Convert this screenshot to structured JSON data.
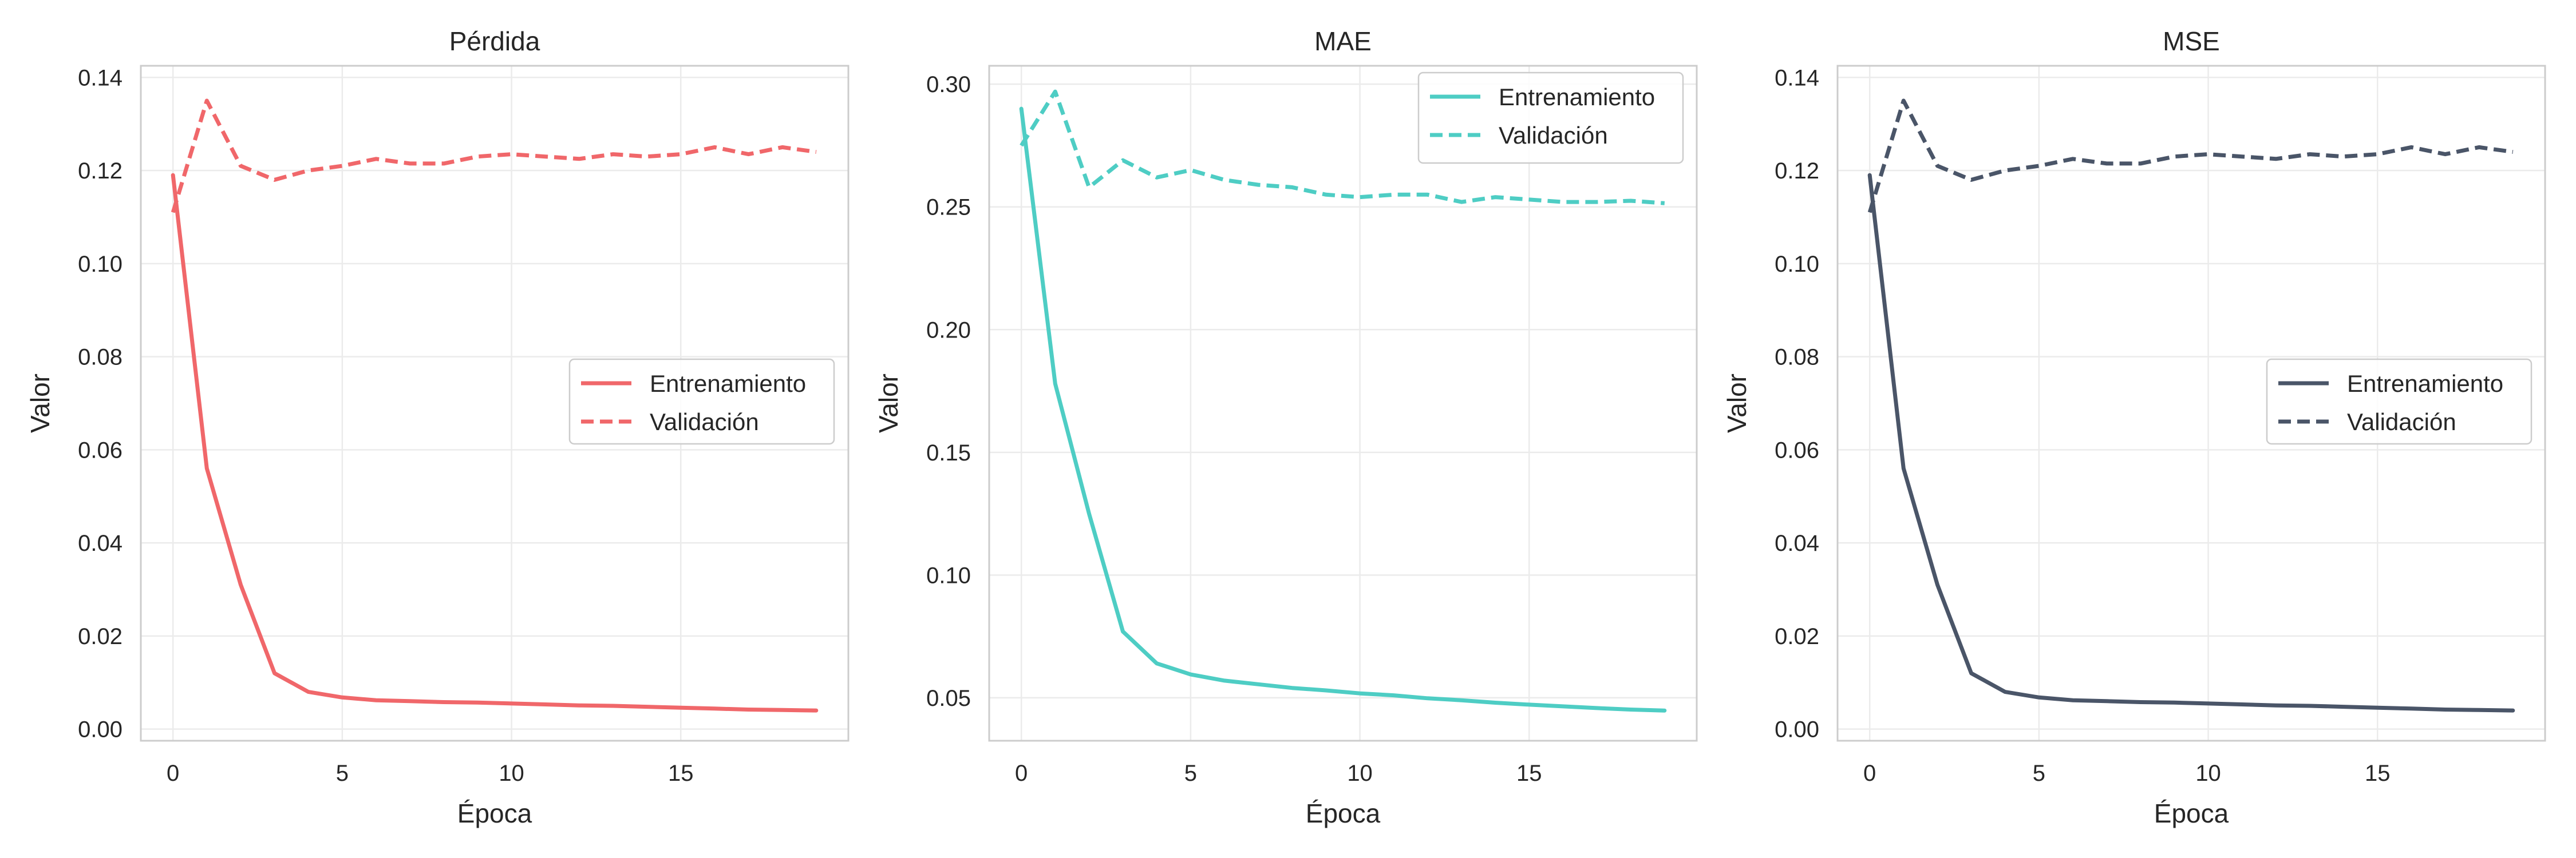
{
  "chart_data": [
    {
      "type": "line",
      "title": "Pérdida",
      "xlabel": "Época",
      "ylabel": "Valor",
      "x": [
        0,
        1,
        2,
        3,
        4,
        5,
        6,
        7,
        8,
        9,
        10,
        11,
        12,
        13,
        14,
        15,
        16,
        17,
        18,
        19
      ],
      "xlim": [
        -0.95,
        19.95
      ],
      "ylim": [
        -0.0025,
        0.1425
      ],
      "xticks": [
        0,
        5,
        10,
        15
      ],
      "xtick_labels": [
        "0",
        "5",
        "10",
        "15"
      ],
      "yticks": [
        0.0,
        0.02,
        0.04,
        0.06,
        0.08,
        0.1,
        0.12,
        0.14
      ],
      "ytick_labels": [
        "0.00",
        "0.02",
        "0.04",
        "0.06",
        "0.08",
        "0.10",
        "0.12",
        "0.14"
      ],
      "grid": true,
      "legend_position": "center-right",
      "series": [
        {
          "name": "Entrenamiento",
          "style": "solid",
          "color": "#f0676a",
          "values": [
            0.119,
            0.056,
            0.031,
            0.012,
            0.008,
            0.0068,
            0.0062,
            0.006,
            0.0058,
            0.0057,
            0.0055,
            0.0053,
            0.0051,
            0.005,
            0.0048,
            0.0046,
            0.0044,
            0.0042,
            0.0041,
            0.004
          ]
        },
        {
          "name": "Validación",
          "style": "dashed",
          "color": "#f0676a",
          "values": [
            0.111,
            0.135,
            0.121,
            0.118,
            0.12,
            0.121,
            0.1225,
            0.1215,
            0.1215,
            0.123,
            0.1235,
            0.123,
            0.1225,
            0.1235,
            0.123,
            0.1235,
            0.125,
            0.1235,
            0.125,
            0.124
          ]
        }
      ]
    },
    {
      "type": "line",
      "title": "MAE",
      "xlabel": "Época",
      "ylabel": "Valor",
      "x": [
        0,
        1,
        2,
        3,
        4,
        5,
        6,
        7,
        8,
        9,
        10,
        11,
        12,
        13,
        14,
        15,
        16,
        17,
        18,
        19
      ],
      "xlim": [
        -0.95,
        19.95
      ],
      "ylim": [
        0.0325,
        0.3075
      ],
      "xticks": [
        0,
        5,
        10,
        15
      ],
      "xtick_labels": [
        "0",
        "5",
        "10",
        "15"
      ],
      "yticks": [
        0.05,
        0.1,
        0.15,
        0.2,
        0.25,
        0.3
      ],
      "ytick_labels": [
        "0.05",
        "0.10",
        "0.15",
        "0.20",
        "0.25",
        "0.30"
      ],
      "grid": true,
      "legend_position": "top-right",
      "series": [
        {
          "name": "Entrenamiento",
          "style": "solid",
          "color": "#4ecdc4",
          "values": [
            0.29,
            0.178,
            0.125,
            0.077,
            0.064,
            0.0595,
            0.057,
            0.0555,
            0.054,
            0.053,
            0.0518,
            0.051,
            0.0498,
            0.049,
            0.048,
            0.0472,
            0.0465,
            0.0458,
            0.0452,
            0.0448
          ]
        },
        {
          "name": "Validación",
          "style": "dashed",
          "color": "#4ecdc4",
          "values": [
            0.275,
            0.297,
            0.258,
            0.269,
            0.262,
            0.265,
            0.261,
            0.259,
            0.258,
            0.255,
            0.254,
            0.255,
            0.255,
            0.252,
            0.254,
            0.253,
            0.252,
            0.252,
            0.2525,
            0.2515
          ]
        }
      ]
    },
    {
      "type": "line",
      "title": "MSE",
      "xlabel": "Época",
      "ylabel": "Valor",
      "x": [
        0,
        1,
        2,
        3,
        4,
        5,
        6,
        7,
        8,
        9,
        10,
        11,
        12,
        13,
        14,
        15,
        16,
        17,
        18,
        19
      ],
      "xlim": [
        -0.95,
        19.95
      ],
      "ylim": [
        -0.0025,
        0.1425
      ],
      "xticks": [
        0,
        5,
        10,
        15
      ],
      "xtick_labels": [
        "0",
        "5",
        "10",
        "15"
      ],
      "yticks": [
        0.0,
        0.02,
        0.04,
        0.06,
        0.08,
        0.1,
        0.12,
        0.14
      ],
      "ytick_labels": [
        "0.00",
        "0.02",
        "0.04",
        "0.06",
        "0.08",
        "0.10",
        "0.12",
        "0.14"
      ],
      "grid": true,
      "legend_position": "center-right",
      "series": [
        {
          "name": "Entrenamiento",
          "style": "solid",
          "color": "#4a5568",
          "values": [
            0.119,
            0.056,
            0.031,
            0.012,
            0.008,
            0.0068,
            0.0062,
            0.006,
            0.0058,
            0.0057,
            0.0055,
            0.0053,
            0.0051,
            0.005,
            0.0048,
            0.0046,
            0.0044,
            0.0042,
            0.0041,
            0.004
          ]
        },
        {
          "name": "Validación",
          "style": "dashed",
          "color": "#4a5568",
          "values": [
            0.111,
            0.135,
            0.121,
            0.118,
            0.12,
            0.121,
            0.1225,
            0.1215,
            0.1215,
            0.123,
            0.1235,
            0.123,
            0.1225,
            0.1235,
            0.123,
            0.1235,
            0.125,
            0.1235,
            0.125,
            0.124
          ]
        }
      ]
    }
  ]
}
